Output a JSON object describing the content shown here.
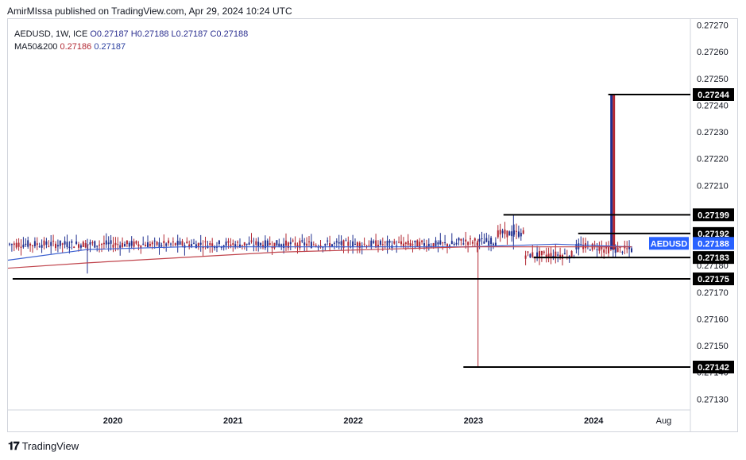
{
  "header": {
    "credit": "AmirMIssa published on TradingView.com, Apr 29, 2024 10:24 UTC"
  },
  "legend": {
    "symbol": "AEDUSD, 1W, ICE",
    "open": "O0.27187",
    "high": "H0.27188",
    "low": "L0.27187",
    "close": "C0.27188",
    "ma_label": "MA50&200",
    "ma50": "0.27186",
    "ma200": "0.27187"
  },
  "footer": {
    "logo_text": "TradingView"
  },
  "colors": {
    "up": "#1f2f8f",
    "down": "#b22833",
    "ma50": "#3a5fd0",
    "ma200": "#c0444c",
    "label_black": "#000000",
    "label_blue": "#2962ff"
  },
  "chart_data": {
    "type": "candlestick",
    "title": "AEDUSD, 1W, ICE",
    "xlabel": "",
    "ylabel": "",
    "x_ticks": [
      "2020",
      "2021",
      "2022",
      "2023",
      "2024",
      "Aug"
    ],
    "y_ticks": [
      "0.27270",
      "0.27260",
      "0.27250",
      "0.27240",
      "0.27230",
      "0.27220",
      "0.27210",
      "0.27180",
      "0.27170",
      "0.27160",
      "0.27150",
      "0.27140",
      "0.27130"
    ],
    "ylim": [
      0.27126,
      0.27273
    ],
    "x_range": [
      "2019-03",
      "2024-10"
    ],
    "grid": false,
    "horizontal_levels": [
      {
        "label": "0.27244",
        "value": 0.27244,
        "x_start": "2024-02-15",
        "x_end": "2024-10"
      },
      {
        "label": "0.27199",
        "value": 0.27199,
        "x_start": "2023-04-01",
        "x_end": "2024-10"
      },
      {
        "label": "0.27192",
        "value": 0.27192,
        "x_start": "2023-11-15",
        "x_end": "2024-10"
      },
      {
        "label": "0.27183",
        "value": 0.27183,
        "x_start": "2023-07-01",
        "x_end": "2024-10"
      },
      {
        "label": "0.27175",
        "value": 0.27175,
        "x_start": "2019-03",
        "x_end": "2024-10"
      },
      {
        "label": "0.27142",
        "value": 0.27142,
        "x_start": "2022-12-01",
        "x_end": "2024-10"
      }
    ],
    "last_price_label": {
      "symbol": "AEDUSD",
      "value": "0.27188"
    },
    "notable_bars": [
      {
        "date": "2019-10-15",
        "low": 0.27177
      },
      {
        "date": "2023-01-15",
        "low": 0.27142
      },
      {
        "date": "2023-05-01",
        "high": 0.27199
      },
      {
        "date": "2024-02-26",
        "high": 0.27244,
        "low": 0.27186
      }
    ],
    "series": [
      {
        "name": "MA50",
        "approx_values": [
          0.27182,
          0.27186,
          0.27187,
          0.27187,
          0.27187,
          0.27187,
          0.27188,
          0.27187
        ]
      },
      {
        "name": "MA200",
        "approx_values": [
          0.27179,
          0.27181,
          0.27183,
          0.27185,
          0.27186,
          0.27187,
          0.27187,
          0.27187
        ]
      }
    ]
  }
}
